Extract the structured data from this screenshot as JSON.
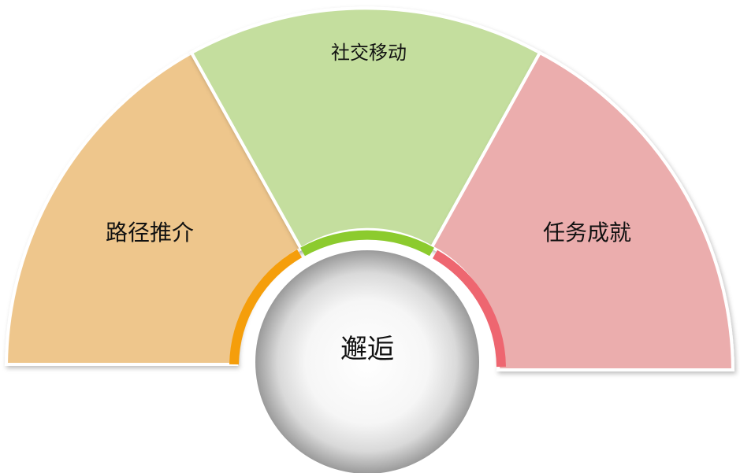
{
  "diagram": {
    "center_label": "邂逅",
    "segments": [
      {
        "label": "路径推介",
        "color": "#EEC68C",
        "accent": "#F59E0B"
      },
      {
        "label": "社交移动",
        "color": "#C4DE9E",
        "accent": "#8CCB2E"
      },
      {
        "label": "任务成就",
        "color": "#EBADAD",
        "accent": "#EE6670"
      }
    ]
  }
}
